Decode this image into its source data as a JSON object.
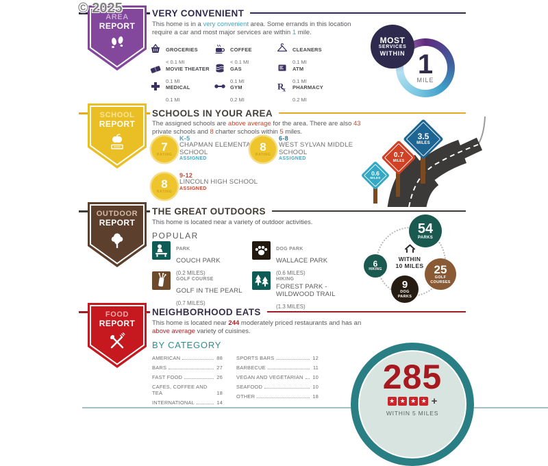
{
  "watermark": "© 2025",
  "area": {
    "badge": {
      "line1": "AREA",
      "line2": "REPORT",
      "color": "#83489b",
      "line1_color": "#c9abd9"
    },
    "title": "VERY CONVENIENT",
    "title_color": "#312a4d",
    "accent": "#312a4d",
    "paragraph": [
      {
        "t": "This home is in a "
      },
      {
        "t": "very convenient",
        "c": "#3fa6c9"
      },
      {
        "t": " area. Some errands in this location require a car and most major services are within "
      },
      {
        "t": "1",
        "c": "#3fa6c9"
      },
      {
        "t": " mile."
      }
    ],
    "services": [
      {
        "icon": "groceries-icon",
        "label": "GROCERIES",
        "dist": "< 0.1 MI"
      },
      {
        "icon": "coffee-icon",
        "label": "COFFEE",
        "dist": "< 0.1 MI"
      },
      {
        "icon": "cleaners-icon",
        "label": "CLEANERS",
        "dist": "0.1 MI"
      },
      {
        "icon": "movie-theater-icon",
        "label": "MOVIE THEATER",
        "dist": "0.1 MI"
      },
      {
        "icon": "gas-icon",
        "label": "GAS",
        "dist": "0.1 MI"
      },
      {
        "icon": "atm-icon",
        "label": "ATM",
        "dist": "0.1 MI"
      },
      {
        "icon": "medical-icon",
        "label": "MEDICAL",
        "dist": "0.1 MI"
      },
      {
        "icon": "gym-icon",
        "label": "GYM",
        "dist": "0.2 MI"
      },
      {
        "icon": "pharmacy-icon",
        "label": "PHARMACY",
        "dist": "0.2 MI"
      }
    ],
    "summary": {
      "label1": "MOST",
      "label2": "SERVICES",
      "label3": "WITHIN",
      "value": "1",
      "unit": "MILE",
      "circle_color": "#2e2a4e"
    }
  },
  "school": {
    "badge": {
      "line1": "SCHOOL",
      "line2": "REPORT",
      "color": "#e9bf25",
      "line1_color": "#f7e39a"
    },
    "title": "SCHOOLS IN YOUR AREA",
    "title_color": "#44403a",
    "accent": "#e3ac1c",
    "paragraph": [
      {
        "t": "The assigned schools are "
      },
      {
        "t": "above average",
        "c": "#d0442c"
      },
      {
        "t": " for the area. There are also "
      },
      {
        "t": "43",
        "c": "#d0442c"
      },
      {
        "t": " private schools and "
      },
      {
        "t": "8",
        "c": "#d0442c"
      },
      {
        "t": " charter schools within "
      },
      {
        "t": "5",
        "c": "#d0442c"
      },
      {
        "t": " miles."
      }
    ],
    "schools": [
      {
        "rating": "7",
        "rating_label": "RATING",
        "grades": "K-5",
        "grades_color": "#3fa6c9",
        "name": "CHAPMAN ELEMENTARY SCHOOL",
        "assigned": "ASSIGNED",
        "assigned_color": "#3fa6c9"
      },
      {
        "rating": "8",
        "rating_label": "RATING",
        "grades": "6-8",
        "grades_color": "#35708f",
        "name": "WEST SYLVAN MIDDLE SCHOOL",
        "assigned": "ASSIGNED",
        "assigned_color": "#3fa6c9"
      },
      {
        "rating": "8",
        "rating_label": "RATING",
        "grades": "9-12",
        "grades_color": "#cf4226",
        "name": "LINCOLN HIGH SCHOOL",
        "assigned": "ASSIGNED",
        "assigned_color": "#cf4226"
      }
    ],
    "signs": [
      {
        "value": "0.6",
        "unit": "MILES",
        "color": "#35a8c4"
      },
      {
        "value": "0.7",
        "unit": "MILES",
        "color": "#cf4226"
      },
      {
        "value": "3.5",
        "unit": "MILES",
        "color": "#1d6593"
      }
    ]
  },
  "outdoor": {
    "badge": {
      "line1": "OUTDOOR",
      "line2": "REPORT",
      "color": "#5d3f2d",
      "line1_color": "#d2bba7"
    },
    "title": "THE GREAT OUTDOORS",
    "title_color": "#423c35",
    "accent": "#3f3b38",
    "paragraph": [
      {
        "t": "This home is located near a variety of outdoor activities."
      }
    ],
    "popular_label": "POPULAR",
    "items": [
      {
        "icon": "park-icon",
        "type": "PARK",
        "name": "COUCH PARK",
        "dist": "(0.2 MILES)",
        "color": "#0f5b55"
      },
      {
        "icon": "paw-icon",
        "type": "DOG PARK",
        "name": "WALLACE PARK",
        "dist": "(0.6 MILES)",
        "color": "#221910"
      },
      {
        "icon": "golf-icon",
        "type": "GOLF COURSE",
        "name": "GOLF IN THE PEARL",
        "dist": "(0.7 MILES)",
        "color": "#6d4a2c"
      },
      {
        "icon": "hiking-icon",
        "type": "HIKING",
        "name": "FOREST PARK - WILDWOOD TRAIL",
        "dist": "(1.3 MILES)",
        "color": "#0f5b55"
      }
    ],
    "radius": {
      "line1": "WITHIN",
      "line2": "10 MILES"
    },
    "bubbles": [
      {
        "value": "54",
        "label": "PARKS",
        "color": "#19594f"
      },
      {
        "value": "25",
        "label": "GOLF COURSES",
        "color": "#8a5a35"
      },
      {
        "value": "9",
        "label": "DOG PARKS",
        "color": "#261c12"
      },
      {
        "value": "6",
        "label": "HIKING",
        "color": "#19594f"
      }
    ]
  },
  "food": {
    "badge": {
      "line1": "FOOD",
      "line2": "REPORT",
      "color": "#c5191f",
      "line1_color": "#f0abab"
    },
    "title": "NEIGHBORHOOD EATS",
    "title_color": "#38304a",
    "accent": "#9e1c22",
    "paragraph": [
      {
        "t": "This home is located near "
      },
      {
        "t": "244",
        "c": "#b22025",
        "b": true
      },
      {
        "t": " moderately priced restaurants and has an "
      },
      {
        "t": "above average",
        "c": "#b22025"
      },
      {
        "t": " variety of cuisines."
      }
    ],
    "by_category": "BY CATEGORY",
    "col1": [
      {
        "name": "AMERICAN",
        "value": "88"
      },
      {
        "name": "BARS",
        "value": "27"
      },
      {
        "name": "FAST FOOD",
        "value": "26"
      },
      {
        "name": "CAFES, COFFEE AND TEA",
        "value": "18"
      },
      {
        "name": "INTERNATIONAL",
        "value": "14"
      }
    ],
    "col2": [
      {
        "name": "SPORTS BARS",
        "value": "12"
      },
      {
        "name": "BARBECUE",
        "value": "11"
      },
      {
        "name": "VEGAN AND VEGETARIAN",
        "value": "10"
      },
      {
        "name": "SEAFOOD",
        "value": "10"
      },
      {
        "name": "OTHER",
        "value": "18"
      }
    ],
    "summary": {
      "count": "285",
      "stars": "★★★★",
      "plus": "+",
      "caption": "WITHIN 5 MILES",
      "circle_color": "#2a7f85",
      "inner_color": "#d8e4e0",
      "count_color": "#a6191e",
      "star_color": "#c9252b"
    }
  }
}
